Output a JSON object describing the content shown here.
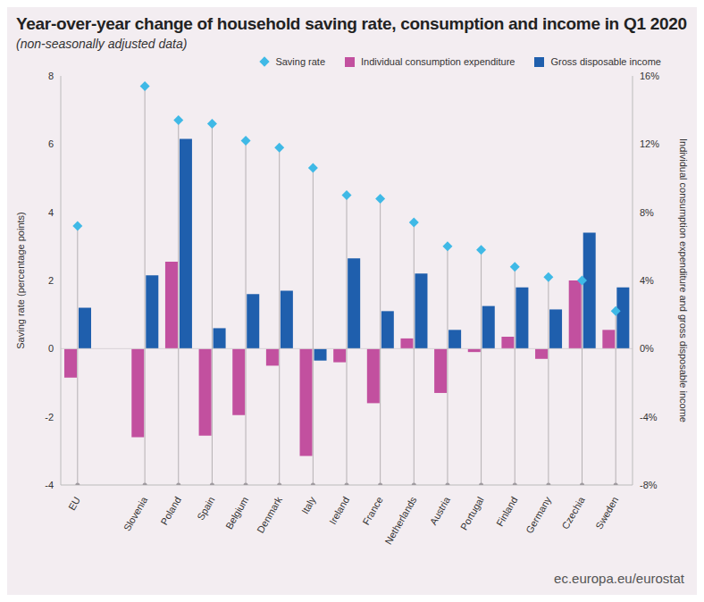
{
  "chart_data": {
    "type": "bar",
    "title": "Year-over-year change of household saving rate, consumption and income in Q1 2020",
    "subtitle": "(non-seasonally adjusted data)",
    "source": "ec.europa.eu/eurostat",
    "y_label": "Saving rate (percentage points)",
    "y2_label": "Individual consumption expenditure and gross disposable income",
    "categories": [
      "EU",
      null,
      "Slovenia",
      "Poland",
      "Spain",
      "Belgium",
      "Denmark",
      "Italy",
      "Ireland",
      "France",
      "Netherlands",
      "Austria",
      "Portugal",
      "Finland",
      "Germany",
      "Czechia",
      "Sweden"
    ],
    "series": [
      {
        "name": "Saving rate",
        "type": "scatter",
        "marker": "diamond",
        "color": "#3fb9e6",
        "values": [
          3.6,
          null,
          7.7,
          6.7,
          6.6,
          6.1,
          5.9,
          5.3,
          4.5,
          4.4,
          3.7,
          3.0,
          2.9,
          2.4,
          2.1,
          2.0,
          1.1
        ]
      },
      {
        "name": "Individual consumption expenditure",
        "type": "bar",
        "axis": "y2",
        "color": "#c2509f",
        "values": [
          -1.7,
          null,
          -5.2,
          5.1,
          -5.1,
          -3.9,
          -1.0,
          -6.3,
          -0.8,
          -3.2,
          0.6,
          -2.6,
          -0.2,
          0.7,
          -0.6,
          4.0,
          1.1
        ]
      },
      {
        "name": "Gross disposable income",
        "type": "bar",
        "axis": "y2",
        "color": "#1f5fad",
        "values": [
          2.4,
          null,
          4.3,
          12.3,
          1.2,
          3.2,
          3.4,
          -0.7,
          5.3,
          2.2,
          4.4,
          1.1,
          2.5,
          3.6,
          2.3,
          6.8,
          3.6
        ]
      }
    ],
    "ylim": [
      -4,
      8
    ],
    "yticks": [
      -4,
      -2,
      0,
      2,
      4,
      6,
      8
    ],
    "y2lim": [
      -8,
      16
    ],
    "y2ticks": [
      {
        "value": -8,
        "label": "-8%"
      },
      {
        "value": -4,
        "label": "-4%"
      },
      {
        "value": 0,
        "label": "0%"
      },
      {
        "value": 4,
        "label": "4%"
      },
      {
        "value": 8,
        "label": "8%"
      },
      {
        "value": 12,
        "label": "12%"
      },
      {
        "value": 16,
        "label": "16%"
      }
    ],
    "grid": false,
    "legend": "top-right"
  }
}
